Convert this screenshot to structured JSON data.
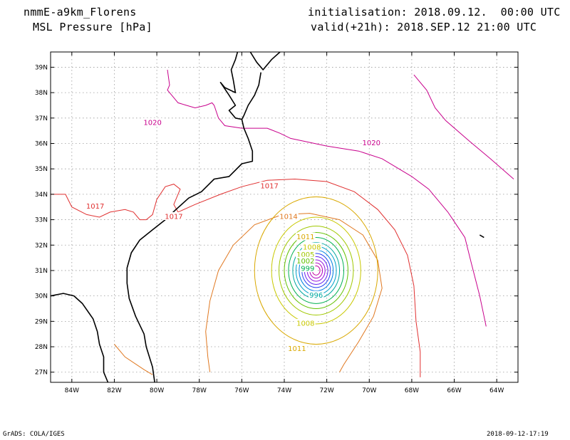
{
  "header": {
    "model": "nmmE-a9km_Florens",
    "field": "MSL Pressure [hPa]",
    "initialisation": "initialisation: 2018.09.12.  00:00 UTC",
    "valid": "valid(+21h): 2018.SEP.12 21:00 UTC"
  },
  "footer": {
    "software": "GrADS: COLA/IGES",
    "timestamp": "2018-09-12-17:19"
  },
  "axes": {
    "lon_labels": [
      "84W",
      "82W",
      "80W",
      "78W",
      "76W",
      "74W",
      "72W",
      "70W",
      "68W",
      "66W",
      "64W"
    ],
    "lat_labels": [
      "39N",
      "38N",
      "37N",
      "36N",
      "35N",
      "34N",
      "33N",
      "32N",
      "31N",
      "30N",
      "29N",
      "28N",
      "27N"
    ],
    "lon_range": [
      -85,
      -63
    ],
    "lat_range": [
      26.6,
      39.6
    ],
    "grid": true
  },
  "contour_labels": [
    {
      "text": "1020",
      "color": "#c8008c",
      "lon": -80.2,
      "lat": 36.8
    },
    {
      "text": "1020",
      "color": "#c8008c",
      "lon": -69.9,
      "lat": 36.0
    },
    {
      "text": "1017",
      "color": "#e03030",
      "lon": -82.9,
      "lat": 33.5
    },
    {
      "text": "1017",
      "color": "#e03030",
      "lon": -74.7,
      "lat": 34.3
    },
    {
      "text": "1017",
      "color": "#e03030",
      "lon": -79.2,
      "lat": 33.1
    },
    {
      "text": "1014",
      "color": "#e07820",
      "lon": -73.8,
      "lat": 33.1
    },
    {
      "text": "1011",
      "color": "#d9a800",
      "lon": -73.0,
      "lat": 32.3
    },
    {
      "text": "1011",
      "color": "#d9a800",
      "lon": -73.4,
      "lat": 27.9
    },
    {
      "text": "1008",
      "color": "#c8c800",
      "lon": -72.7,
      "lat": 31.9
    },
    {
      "text": "1008",
      "color": "#c8c800",
      "lon": -73.0,
      "lat": 28.9
    },
    {
      "text": "1005",
      "color": "#a0c800",
      "lon": -73.0,
      "lat": 31.6
    },
    {
      "text": "1002",
      "color": "#60c000",
      "lon": -73.0,
      "lat": 31.35
    },
    {
      "text": "999",
      "color": "#00b050",
      "lon": -72.9,
      "lat": 31.05
    },
    {
      "text": "996",
      "color": "#00a8a0",
      "lon": -72.5,
      "lat": 30.0
    }
  ],
  "isobars": [
    {
      "hpa": 1020,
      "color": "#c8008c",
      "segments": [
        [
          [
            -79.5,
            38.9
          ],
          [
            -79.4,
            38.3
          ],
          [
            -79.5,
            38.1
          ],
          [
            -79.2,
            37.8
          ],
          [
            -79.0,
            37.6
          ],
          [
            -78.6,
            37.5
          ],
          [
            -78.2,
            37.4
          ],
          [
            -77.7,
            37.5
          ],
          [
            -77.4,
            37.6
          ],
          [
            -77.3,
            37.5
          ],
          [
            -77.1,
            37.0
          ],
          [
            -76.8,
            36.7
          ],
          [
            -76.0,
            36.6
          ],
          [
            -74.8,
            36.6
          ],
          [
            -74.2,
            36.4
          ],
          [
            -73.7,
            36.2
          ],
          [
            -72.0,
            35.9
          ],
          [
            -70.5,
            35.7
          ],
          [
            -69.4,
            35.4
          ],
          [
            -68.0,
            34.7
          ],
          [
            -67.2,
            34.2
          ],
          [
            -66.3,
            33.3
          ],
          [
            -65.5,
            32.3
          ],
          [
            -65.2,
            31.3
          ],
          [
            -64.8,
            30.0
          ],
          [
            -64.6,
            29.2
          ],
          [
            -64.5,
            28.8
          ]
        ],
        [
          [
            -67.9,
            38.7
          ],
          [
            -67.3,
            38.1
          ],
          [
            -66.9,
            37.4
          ],
          [
            -66.4,
            36.9
          ],
          [
            -65.3,
            36.1
          ],
          [
            -64.3,
            35.4
          ],
          [
            -63.2,
            34.6
          ]
        ]
      ]
    },
    {
      "hpa": 1017,
      "color": "#e03030",
      "segments": [
        [
          [
            -85.0,
            34.0
          ],
          [
            -84.3,
            34.0
          ],
          [
            -84.0,
            33.5
          ],
          [
            -83.3,
            33.2
          ],
          [
            -82.7,
            33.1
          ],
          [
            -82.2,
            33.3
          ],
          [
            -81.5,
            33.4
          ],
          [
            -81.1,
            33.3
          ],
          [
            -80.8,
            33.0
          ],
          [
            -80.5,
            33.0
          ],
          [
            -80.2,
            33.2
          ],
          [
            -80.0,
            33.8
          ],
          [
            -79.6,
            34.3
          ],
          [
            -79.2,
            34.4
          ],
          [
            -78.9,
            34.2
          ],
          [
            -79.2,
            33.6
          ],
          [
            -79.0,
            33.3
          ],
          [
            -78.2,
            33.6
          ],
          [
            -77.0,
            34.0
          ],
          [
            -76.0,
            34.3
          ],
          [
            -74.8,
            34.55
          ],
          [
            -73.5,
            34.6
          ],
          [
            -72.0,
            34.5
          ],
          [
            -70.7,
            34.1
          ],
          [
            -69.6,
            33.4
          ],
          [
            -68.8,
            32.6
          ],
          [
            -68.2,
            31.6
          ],
          [
            -67.9,
            30.4
          ],
          [
            -67.8,
            29.0
          ],
          [
            -67.6,
            27.8
          ],
          [
            -67.6,
            26.8
          ]
        ]
      ]
    },
    {
      "hpa": 1014,
      "color": "#e07820",
      "segments": [
        [
          [
            -82.0,
            28.1
          ],
          [
            -81.5,
            27.6
          ],
          [
            -80.6,
            27.1
          ],
          [
            -80.2,
            26.9
          ]
        ],
        [
          [
            -77.5,
            27.0
          ],
          [
            -77.6,
            27.6
          ],
          [
            -77.7,
            28.6
          ],
          [
            -77.5,
            29.8
          ],
          [
            -77.1,
            31.0
          ],
          [
            -76.4,
            32.0
          ],
          [
            -75.4,
            32.8
          ],
          [
            -74.1,
            33.2
          ],
          [
            -72.8,
            33.25
          ],
          [
            -71.4,
            33.0
          ],
          [
            -70.3,
            32.4
          ],
          [
            -69.6,
            31.4
          ],
          [
            -69.4,
            30.3
          ],
          [
            -69.8,
            29.2
          ],
          [
            -70.5,
            28.2
          ],
          [
            -71.2,
            27.3
          ],
          [
            -71.4,
            27.0
          ]
        ]
      ]
    }
  ],
  "cyclone": {
    "center_lon": -72.5,
    "center_lat": 31.0,
    "rings": [
      {
        "hpa": 1011,
        "color": "#d9a800",
        "r": 2.9
      },
      {
        "hpa": 1008,
        "color": "#c8c800",
        "r": 2.1
      },
      {
        "hpa": 1005,
        "color": "#a0c800",
        "r": 1.75
      },
      {
        "hpa": 1002,
        "color": "#60c000",
        "r": 1.5
      },
      {
        "hpa": 999,
        "color": "#00b050",
        "r": 1.3
      },
      {
        "hpa": 996,
        "color": "#00a8a0",
        "r": 1.1
      },
      {
        "hpa": 993,
        "color": "#00a0c8",
        "r": 0.95
      },
      {
        "hpa": 990,
        "color": "#0080e0",
        "r": 0.8
      },
      {
        "hpa": 987,
        "color": "#2040f0",
        "r": 0.67
      },
      {
        "hpa": 984,
        "color": "#6020f0",
        "r": 0.55
      },
      {
        "hpa": 981,
        "color": "#9010e0",
        "r": 0.42
      },
      {
        "hpa": 978,
        "color": "#b000c0",
        "r": 0.3
      },
      {
        "hpa": 975,
        "color": "#c000a0",
        "r": 0.18
      }
    ]
  },
  "coastline": [
    [
      [
        -76.2,
        39.6
      ],
      [
        -76.3,
        39.3
      ],
      [
        -76.5,
        38.9
      ],
      [
        -76.4,
        38.5
      ],
      [
        -76.3,
        38.0
      ],
      [
        -76.8,
        38.2
      ],
      [
        -77.0,
        38.4
      ],
      [
        -76.6,
        37.9
      ],
      [
        -76.3,
        37.5
      ],
      [
        -76.6,
        37.3
      ],
      [
        -76.3,
        37.0
      ],
      [
        -76.0,
        36.95
      ],
      [
        -75.9,
        36.6
      ],
      [
        -75.7,
        36.2
      ],
      [
        -75.5,
        35.7
      ],
      [
        -75.5,
        35.3
      ],
      [
        -76.0,
        35.2
      ],
      [
        -76.6,
        34.7
      ],
      [
        -77.3,
        34.6
      ],
      [
        -77.9,
        34.1
      ],
      [
        -78.5,
        33.85
      ],
      [
        -79.1,
        33.4
      ],
      [
        -79.6,
        33.0
      ],
      [
        -80.2,
        32.6
      ],
      [
        -80.8,
        32.2
      ],
      [
        -81.2,
        31.7
      ],
      [
        -81.4,
        31.1
      ],
      [
        -81.4,
        30.5
      ],
      [
        -81.3,
        29.9
      ],
      [
        -81.0,
        29.2
      ],
      [
        -80.6,
        28.5
      ],
      [
        -80.5,
        28.0
      ],
      [
        -80.2,
        27.2
      ],
      [
        -80.1,
        26.6
      ]
    ],
    [
      [
        -75.1,
        38.8
      ],
      [
        -75.2,
        38.3
      ],
      [
        -75.4,
        37.9
      ],
      [
        -75.7,
        37.5
      ],
      [
        -75.9,
        37.1
      ],
      [
        -76.0,
        36.95
      ]
    ],
    [
      [
        -75.6,
        39.6
      ],
      [
        -75.3,
        39.2
      ],
      [
        -75.0,
        38.9
      ],
      [
        -74.9,
        39.0
      ],
      [
        -74.6,
        39.3
      ],
      [
        -74.2,
        39.6
      ]
    ],
    [
      [
        -85.0,
        30.0
      ],
      [
        -84.4,
        30.1
      ],
      [
        -83.9,
        30.0
      ],
      [
        -83.5,
        29.7
      ],
      [
        -83.0,
        29.1
      ],
      [
        -82.8,
        28.6
      ],
      [
        -82.7,
        28.1
      ],
      [
        -82.5,
        27.6
      ],
      [
        -82.5,
        27.0
      ],
      [
        -82.3,
        26.6
      ]
    ],
    [
      [
        -64.8,
        32.4
      ],
      [
        -64.6,
        32.3
      ]
    ]
  ]
}
